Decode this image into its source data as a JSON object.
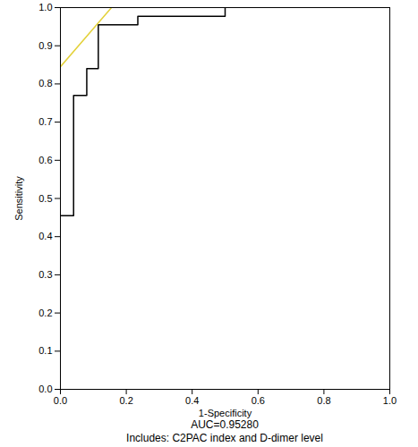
{
  "chart_data": {
    "type": "line",
    "x_label": "1-Specificity",
    "y_label": "Sensitivity",
    "annotations": [
      "AUC=0.95280",
      "Includes: C2PAC index and D-dimer level"
    ],
    "series": [
      {
        "color": "#000000",
        "line_style": "solid",
        "x": [
          0.0,
          0.04,
          0.04,
          0.08,
          0.08,
          0.115,
          0.115,
          0.235,
          0.235,
          0.5,
          0.5
        ],
        "values": [
          0.455,
          0.455,
          0.77,
          0.77,
          0.84,
          0.84,
          0.955,
          0.955,
          0.977,
          0.977,
          1.0
        ]
      },
      {
        "color": "#e3d13a",
        "line_style": "solid",
        "x": [
          0.0,
          0.155
        ],
        "values": [
          0.845,
          1.0
        ]
      }
    ],
    "xlim": [
      0,
      1
    ],
    "ylim": [
      0,
      1
    ],
    "xticks": [
      {
        "value": 0,
        "label": "0.0"
      },
      {
        "value": 0.2,
        "label": "0.2"
      },
      {
        "value": 0.4,
        "label": "0.4"
      },
      {
        "value": 0.6,
        "label": "0.6"
      },
      {
        "value": 0.8,
        "label": "0.8"
      },
      {
        "value": 1,
        "label": "1.0"
      }
    ],
    "yticks": [
      {
        "value": 0,
        "label": "0.0"
      },
      {
        "value": 0.1,
        "label": "0.1"
      },
      {
        "value": 0.2,
        "label": "0.2"
      },
      {
        "value": 0.3,
        "label": "0.3"
      },
      {
        "value": 0.4,
        "label": "0.4"
      },
      {
        "value": 0.5,
        "label": "0.5"
      },
      {
        "value": 0.6,
        "label": "0.6"
      },
      {
        "value": 0.7,
        "label": "0.7"
      },
      {
        "value": 0.8,
        "label": "0.8"
      },
      {
        "value": 0.9,
        "label": "0.9"
      },
      {
        "value": 1,
        "label": "1.0"
      }
    ],
    "grid": false
  }
}
